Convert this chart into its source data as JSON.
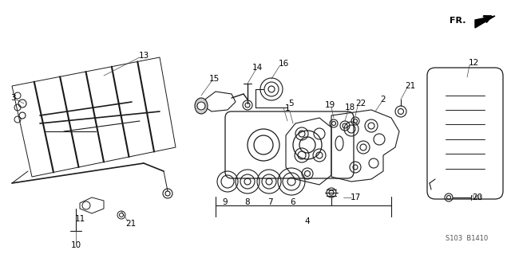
{
  "bg_color": "#ffffff",
  "line_color": "#1a1a1a",
  "fig_width": 6.4,
  "fig_height": 3.19,
  "dpi": 100,
  "diagram_code": "S103  B1410"
}
